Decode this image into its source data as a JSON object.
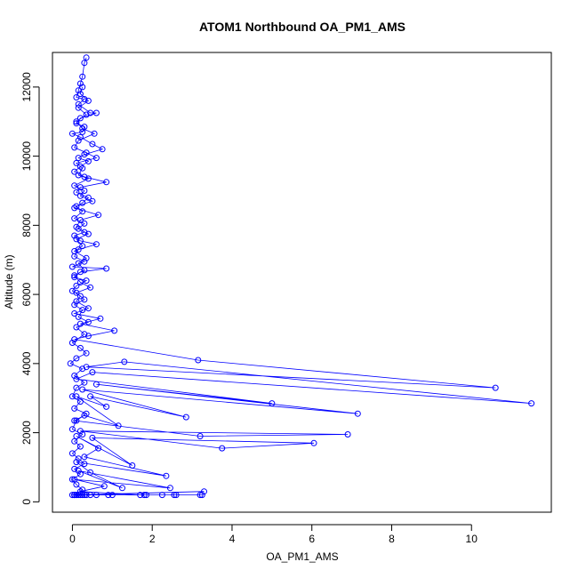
{
  "chart_data": {
    "type": "scatter",
    "title": "ATOM1 Northbound OA_PM1_AMS",
    "xlabel": "OA_PM1_AMS",
    "ylabel": "Altitude (m)",
    "xlim": [
      -0.5,
      12
    ],
    "ylim": [
      -300,
      13000
    ],
    "xticks": [
      0,
      2,
      4,
      6,
      8,
      10
    ],
    "yticks": [
      0,
      2000,
      4000,
      6000,
      8000,
      10000,
      12000
    ],
    "grid": false,
    "legend": "none",
    "color": "#0000ff",
    "marker": "open-circle",
    "connected": true,
    "series": [
      {
        "points": [
          [
            0.35,
            12850
          ],
          [
            0.3,
            12700
          ],
          [
            0.25,
            12300
          ],
          [
            0.2,
            12100
          ],
          [
            0.15,
            11900
          ],
          [
            0.1,
            11700
          ],
          [
            0.3,
            11650
          ],
          [
            0.15,
            11500
          ],
          [
            0.45,
            11250
          ],
          [
            0.6,
            11250
          ],
          [
            0.2,
            11100
          ],
          [
            0.1,
            10950
          ],
          [
            0.3,
            10850
          ],
          [
            0.25,
            10700
          ],
          [
            0.0,
            10650
          ],
          [
            0.2,
            10550
          ],
          [
            0.5,
            10350
          ],
          [
            0.75,
            10200
          ],
          [
            0.3,
            10050
          ],
          [
            0.15,
            9950
          ],
          [
            0.4,
            9850
          ],
          [
            0.2,
            9700
          ],
          [
            0.05,
            9550
          ],
          [
            0.3,
            9400
          ],
          [
            0.85,
            9250
          ],
          [
            0.2,
            9100
          ],
          [
            0.1,
            8950
          ],
          [
            0.4,
            8800
          ],
          [
            0.25,
            8650
          ],
          [
            0.05,
            8500
          ],
          [
            0.65,
            8300
          ],
          [
            0.2,
            8150
          ],
          [
            0.1,
            7950
          ],
          [
            0.3,
            7800
          ],
          [
            0.05,
            7700
          ],
          [
            0.2,
            7550
          ],
          [
            0.6,
            7450
          ],
          [
            0.15,
            7300
          ],
          [
            0.05,
            7100
          ],
          [
            0.3,
            6950
          ],
          [
            0.0,
            6800
          ],
          [
            0.85,
            6750
          ],
          [
            0.2,
            6650
          ],
          [
            0.05,
            6500
          ],
          [
            0.35,
            6400
          ],
          [
            0.1,
            6250
          ],
          [
            0.0,
            6100
          ],
          [
            0.2,
            5950
          ],
          [
            0.1,
            5800
          ],
          [
            0.4,
            5600
          ],
          [
            0.05,
            5450
          ],
          [
            0.7,
            5300
          ],
          [
            0.2,
            5150
          ],
          [
            1.05,
            4950
          ],
          [
            0.4,
            4800
          ],
          [
            0.05,
            4700
          ],
          [
            3.15,
            4100
          ],
          [
            10.6,
            3300
          ],
          [
            0.35,
            3900
          ],
          [
            1.3,
            4050
          ],
          [
            11.5,
            2850
          ],
          [
            0.5,
            3750
          ],
          [
            0.1,
            3550
          ],
          [
            5.0,
            2850
          ],
          [
            0.6,
            3400
          ],
          [
            7.15,
            2550
          ],
          [
            0.25,
            3250
          ],
          [
            2.85,
            2450
          ],
          [
            0.45,
            3050
          ],
          [
            0.85,
            2750
          ],
          [
            0.1,
            3050
          ],
          [
            1.15,
            2200
          ],
          [
            0.3,
            2500
          ],
          [
            0.05,
            2350
          ],
          [
            3.2,
            1900
          ],
          [
            6.9,
            1950
          ],
          [
            0.2,
            2050
          ],
          [
            3.75,
            1550
          ],
          [
            6.05,
            1700
          ],
          [
            0.5,
            1850
          ],
          [
            1.5,
            1050
          ],
          [
            0.1,
            1900
          ],
          [
            0.65,
            1550
          ],
          [
            0.3,
            1300
          ],
          [
            2.35,
            750
          ],
          [
            0.1,
            1150
          ],
          [
            0.45,
            850
          ],
          [
            1.25,
            400
          ],
          [
            0.15,
            900
          ],
          [
            2.45,
            400
          ],
          [
            0.05,
            650
          ],
          [
            0.8,
            450
          ],
          [
            0.2,
            300
          ],
          [
            1.7,
            200
          ],
          [
            0.3,
            200
          ],
          [
            2.55,
            200
          ],
          [
            0.1,
            200
          ],
          [
            3.25,
            200
          ],
          [
            0.25,
            200
          ],
          [
            3.3,
            300
          ],
          [
            0.0,
            200
          ],
          [
            0.9,
            200
          ],
          [
            1.85,
            200
          ],
          [
            2.6,
            200
          ],
          [
            3.2,
            200
          ],
          [
            1.8,
            200
          ],
          [
            0.05,
            200
          ],
          [
            0.45,
            200
          ],
          [
            1.0,
            200
          ],
          [
            0.15,
            200
          ],
          [
            0.6,
            200
          ],
          [
            2.25,
            200
          ],
          [
            0.05,
            200
          ]
        ]
      },
      {
        "points": [
          [
            0.25,
            12000
          ],
          [
            0.2,
            11800
          ],
          [
            0.4,
            11600
          ],
          [
            0.15,
            11400
          ],
          [
            0.35,
            11200
          ],
          [
            0.1,
            11000
          ],
          [
            0.25,
            10800
          ],
          [
            0.55,
            10650
          ],
          [
            0.15,
            10450
          ],
          [
            0.05,
            10250
          ],
          [
            0.35,
            10100
          ],
          [
            0.6,
            9950
          ],
          [
            0.1,
            9800
          ],
          [
            0.25,
            9650
          ],
          [
            0.15,
            9450
          ],
          [
            0.4,
            9350
          ],
          [
            0.05,
            9150
          ],
          [
            0.3,
            9000
          ],
          [
            0.2,
            8850
          ],
          [
            0.5,
            8700
          ],
          [
            0.1,
            8550
          ],
          [
            0.25,
            8400
          ],
          [
            0.05,
            8200
          ],
          [
            0.3,
            8050
          ],
          [
            0.15,
            7900
          ],
          [
            0.4,
            7750
          ],
          [
            0.1,
            7600
          ],
          [
            0.25,
            7400
          ],
          [
            0.05,
            7250
          ],
          [
            0.35,
            7050
          ],
          [
            0.15,
            6900
          ],
          [
            0.3,
            6700
          ],
          [
            0.05,
            6550
          ],
          [
            0.2,
            6350
          ],
          [
            0.45,
            6200
          ],
          [
            0.1,
            6050
          ],
          [
            0.3,
            5850
          ],
          [
            0.05,
            5700
          ],
          [
            0.25,
            5550
          ],
          [
            0.15,
            5350
          ],
          [
            0.4,
            5200
          ],
          [
            0.1,
            5050
          ],
          [
            0.3,
            4850
          ],
          [
            0.0,
            4600
          ],
          [
            0.2,
            4450
          ],
          [
            0.35,
            4300
          ],
          [
            0.1,
            4150
          ],
          [
            -0.05,
            4000
          ],
          [
            0.25,
            3850
          ],
          [
            0.05,
            3650
          ],
          [
            0.3,
            3450
          ],
          [
            0.1,
            3300
          ],
          [
            0.0,
            3050
          ],
          [
            0.2,
            2900
          ],
          [
            0.05,
            2700
          ],
          [
            0.35,
            2550
          ],
          [
            0.1,
            2350
          ],
          [
            0.0,
            2100
          ],
          [
            0.25,
            1950
          ],
          [
            0.05,
            1750
          ],
          [
            0.2,
            1600
          ],
          [
            0.0,
            1400
          ],
          [
            0.15,
            1250
          ],
          [
            0.3,
            1100
          ],
          [
            0.05,
            950
          ],
          [
            0.2,
            800
          ],
          [
            0.0,
            650
          ],
          [
            0.1,
            500
          ],
          [
            0.25,
            350
          ],
          [
            0.05,
            200
          ],
          [
            0.1,
            200
          ],
          [
            0.2,
            200
          ],
          [
            0.35,
            200
          ]
        ]
      }
    ]
  }
}
